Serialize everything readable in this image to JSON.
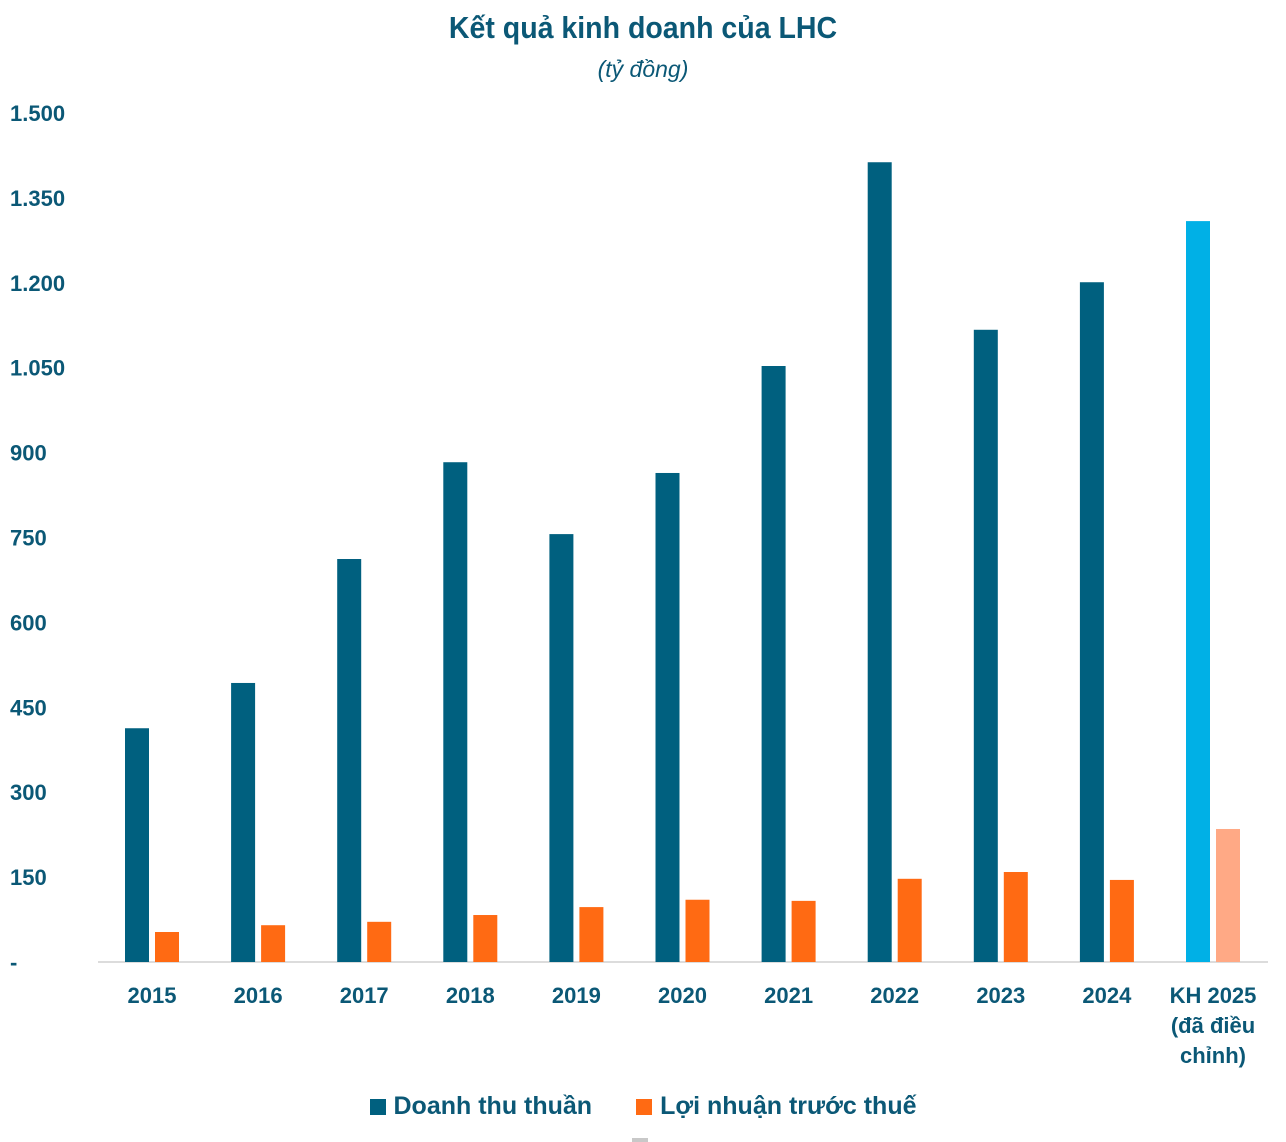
{
  "chart_data": {
    "type": "bar",
    "title": "Kết quả kinh doanh của LHC",
    "subtitle": "(tỷ đồng)",
    "categories": [
      "2015",
      "2016",
      "2017",
      "2018",
      "2019",
      "2020",
      "2021",
      "2022",
      "2023",
      "2024",
      "KH 2025\n(đã điều\nchỉnh)"
    ],
    "series": [
      {
        "name": "Doanh thu thuần",
        "color": "#00607f",
        "highlight_color_last": "#00b0e6",
        "values": [
          413,
          493,
          712,
          883,
          756,
          864,
          1053,
          1413,
          1117,
          1201,
          1309
        ]
      },
      {
        "name": "Lợi nhuận trước thuế",
        "color": "#ff6a13",
        "highlight_color_last": "#ffa985",
        "values": [
          53,
          65,
          71,
          83,
          97,
          110,
          108,
          147,
          159,
          145,
          235
        ]
      }
    ],
    "yticks": [
      0,
      150,
      300,
      450,
      600,
      750,
      900,
      1050,
      1200,
      1350,
      1500
    ],
    "ytick_labels": [
      "-",
      "150",
      "300",
      "450",
      "600",
      "750",
      "900",
      "1.050",
      "1.200",
      "1.350",
      "1.500"
    ],
    "ylim": [
      0,
      1500
    ],
    "grid": false,
    "legend_position": "bottom"
  }
}
